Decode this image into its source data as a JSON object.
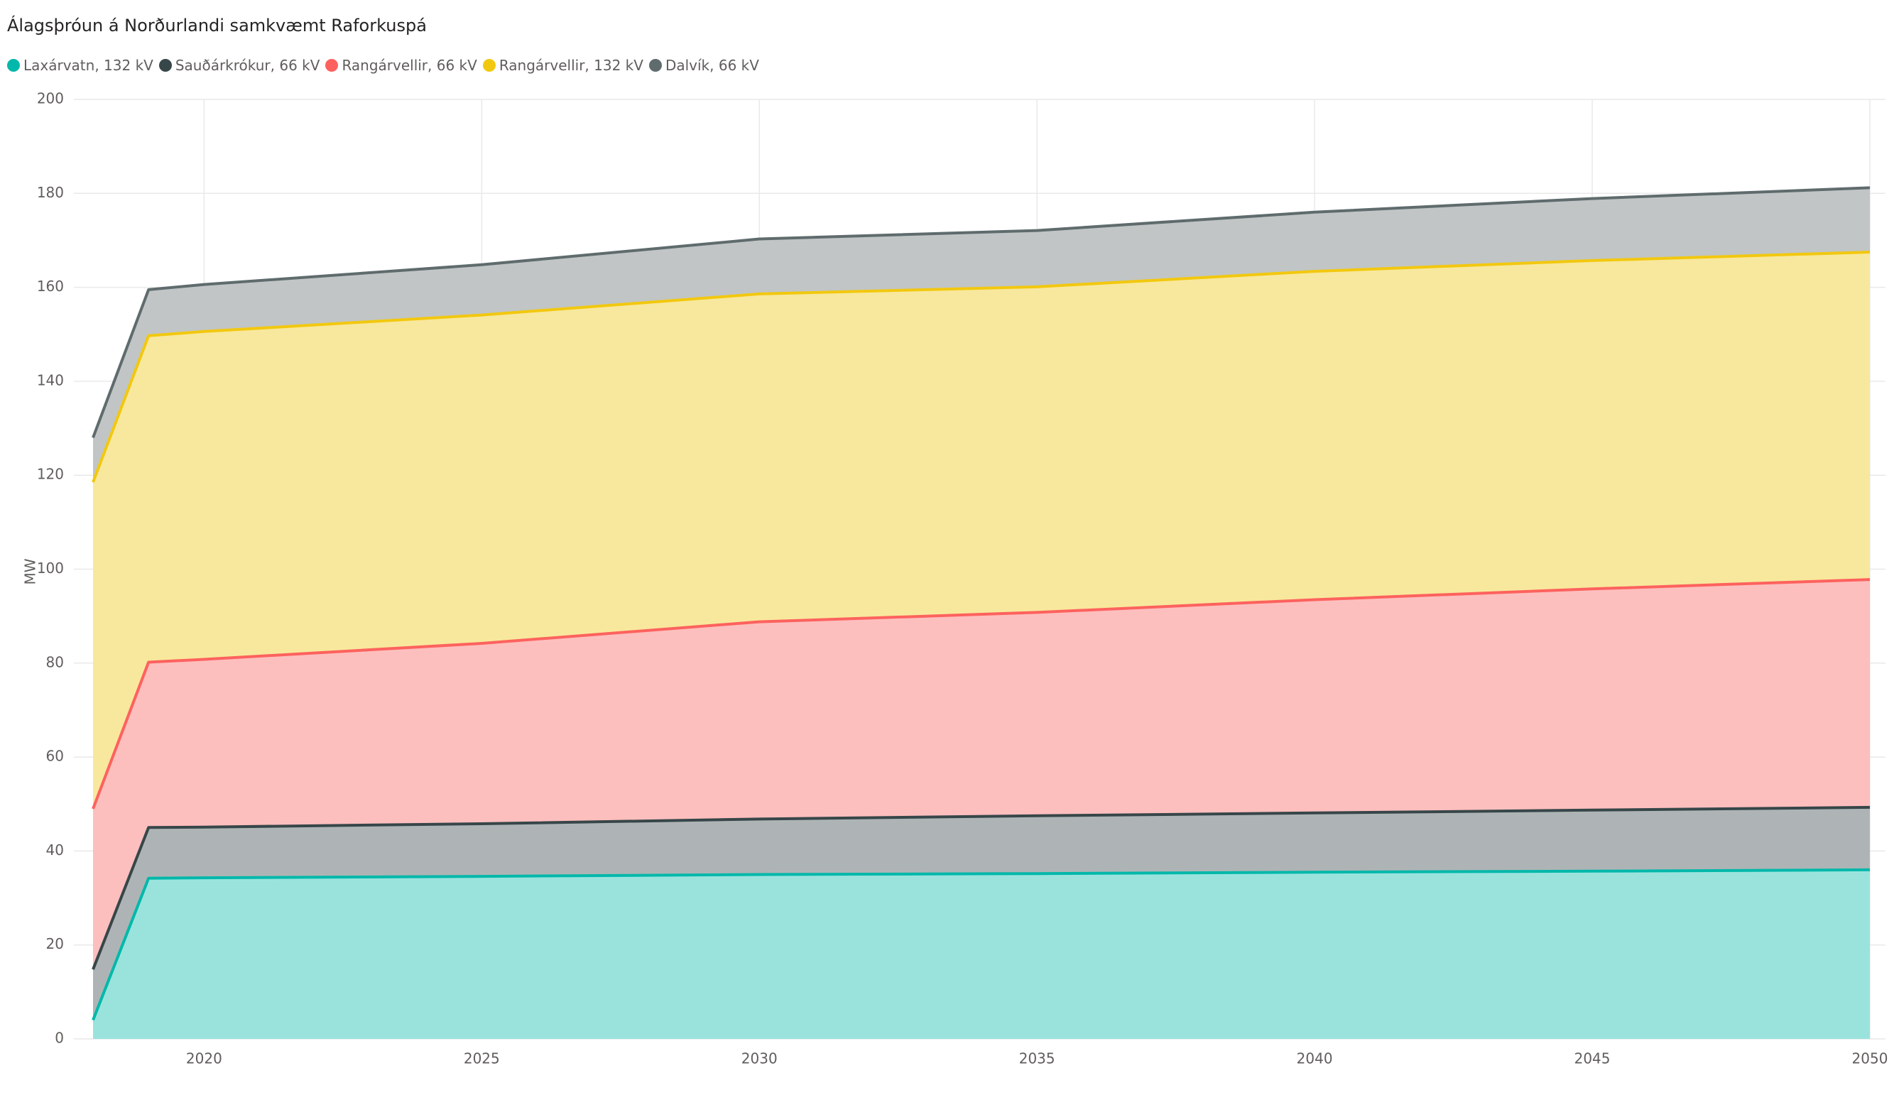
{
  "chart_data": {
    "type": "area",
    "stacked": true,
    "title": "Álagsþróun á Norðurlandi samkvæmt Raforkuspá",
    "ylabel": "MW",
    "xlabel": "",
    "ylim": [
      0,
      200
    ],
    "xlim": [
      2018,
      2050
    ],
    "yticks": [
      0,
      20,
      40,
      60,
      80,
      100,
      120,
      140,
      160,
      180,
      200
    ],
    "xticks": [
      2020,
      2025,
      2030,
      2035,
      2040,
      2045,
      2050
    ],
    "grid": true,
    "legend_position": "top-left",
    "x": [
      2018,
      2019,
      2020,
      2025,
      2030,
      2035,
      2040,
      2045,
      2050
    ],
    "series": [
      {
        "name": "Laxárvatn, 132 kV",
        "color": "#01B8AA",
        "fill": "#9AE3DD",
        "values": [
          4,
          34.2,
          34.3,
          34.6,
          35.0,
          35.2,
          35.5,
          35.7,
          36.0
        ]
      },
      {
        "name": "Sauðárkrókur, 66 kV",
        "color": "#374649",
        "fill": "#AEB4B5",
        "values": [
          10.8,
          10.8,
          10.8,
          11.2,
          11.8,
          12.3,
          12.6,
          13.0,
          13.3
        ]
      },
      {
        "name": "Rangárvellir, 66 kV",
        "color": "#FD625E",
        "fill": "#FCBFBE",
        "values": [
          34.2,
          35.2,
          35.7,
          38.4,
          42.0,
          43.3,
          45.4,
          47.1,
          48.5
        ]
      },
      {
        "name": "Rangárvellir, 132 kV",
        "color": "#F2C80F",
        "fill": "#F8E89D",
        "values": [
          69.5,
          69.5,
          69.8,
          69.9,
          69.8,
          69.3,
          69.9,
          69.9,
          69.7
        ]
      },
      {
        "name": "Dalvík, 66 kV",
        "color": "#5F6B6D",
        "fill": "#C1C5C5",
        "values": [
          9.5,
          9.8,
          10.0,
          10.7,
          11.7,
          12.0,
          12.6,
          13.2,
          13.7
        ]
      }
    ]
  }
}
